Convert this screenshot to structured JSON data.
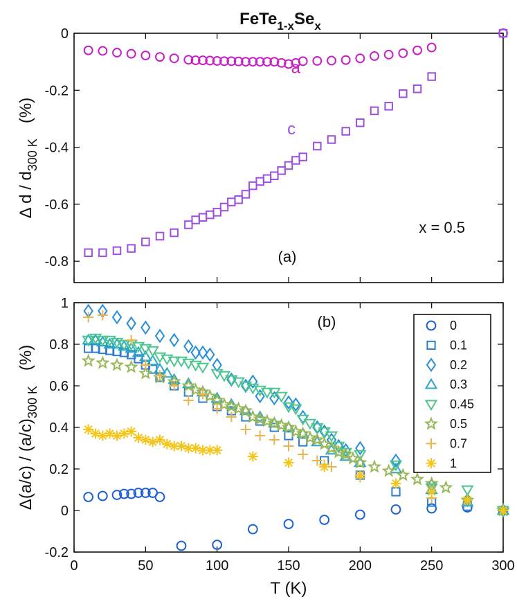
{
  "chart_data": [
    {
      "type": "scatter",
      "panel_label": "(a)",
      "title": {
        "base": "FeTe",
        "sub1": "1-x",
        "mid": "Se",
        "sub2": "x"
      },
      "ylabel": {
        "pre": "Δ d / d",
        "sub": "300 K",
        "unit": "(%)"
      },
      "xlim": [
        0,
        300
      ],
      "ylim": [
        -0.875,
        0
      ],
      "yticks": [
        "0",
        "-0.2",
        "-0.4",
        "-0.6",
        "-0.8"
      ],
      "annotation": "x = 0.5",
      "series": [
        {
          "name": "a",
          "marker": "circle",
          "color": "#c81ec8",
          "label_pos": {
            "x": 155,
            "y": -0.14
          },
          "x": [
            10,
            20,
            30,
            40,
            50,
            60,
            70,
            80,
            85,
            90,
            95,
            100,
            105,
            110,
            115,
            120,
            125,
            130,
            135,
            140,
            145,
            150,
            155,
            160,
            170,
            180,
            190,
            200,
            210,
            220,
            230,
            240,
            250,
            300
          ],
          "y": [
            -0.06,
            -0.062,
            -0.068,
            -0.072,
            -0.078,
            -0.083,
            -0.088,
            -0.093,
            -0.095,
            -0.095,
            -0.096,
            -0.097,
            -0.098,
            -0.098,
            -0.099,
            -0.1,
            -0.1,
            -0.1,
            -0.1,
            -0.1,
            -0.104,
            -0.108,
            -0.104,
            -0.098,
            -0.097,
            -0.096,
            -0.094,
            -0.088,
            -0.08,
            -0.075,
            -0.07,
            -0.06,
            -0.05,
            0.0
          ]
        },
        {
          "name": "c",
          "marker": "square",
          "color": "#9b50e0",
          "label_pos": {
            "x": 152,
            "y": -0.355
          },
          "x": [
            10,
            20,
            30,
            40,
            50,
            60,
            70,
            80,
            85,
            90,
            95,
            100,
            105,
            110,
            115,
            120,
            125,
            130,
            135,
            140,
            145,
            150,
            155,
            160,
            170,
            180,
            190,
            200,
            210,
            220,
            230,
            240,
            250,
            300
          ],
          "y": [
            -0.77,
            -0.77,
            -0.763,
            -0.755,
            -0.732,
            -0.712,
            -0.7,
            -0.672,
            -0.655,
            -0.646,
            -0.637,
            -0.628,
            -0.61,
            -0.592,
            -0.584,
            -0.565,
            -0.535,
            -0.52,
            -0.51,
            -0.5,
            -0.482,
            -0.464,
            -0.446,
            -0.434,
            -0.396,
            -0.373,
            -0.344,
            -0.314,
            -0.272,
            -0.256,
            -0.212,
            -0.195,
            -0.152,
            0.0
          ]
        }
      ]
    },
    {
      "type": "scatter",
      "panel_label": "(b)",
      "xlabel": "T  (K)",
      "ylabel": {
        "pre": "Δ(a/c) / (a/c)",
        "sub": "300 K",
        "unit": "(%)"
      },
      "xlim": [
        0,
        300
      ],
      "ylim": [
        -0.2,
        1
      ],
      "xticks": [
        "0",
        "50",
        "100",
        "150",
        "200",
        "250",
        "300"
      ],
      "yticks": [
        "1",
        "0.8",
        "0.6",
        "0.4",
        "0.2",
        "0",
        "-0.2"
      ],
      "legend_position": "top-right",
      "series": [
        {
          "name": "0",
          "marker": "circle",
          "color": "#1f5fd6",
          "x": [
            10,
            20,
            30,
            35,
            40,
            45,
            50,
            55,
            60,
            75,
            100,
            125,
            150,
            175,
            200,
            225,
            250,
            275,
            300
          ],
          "y": [
            0.065,
            0.07,
            0.075,
            0.08,
            0.08,
            0.085,
            0.085,
            0.085,
            0.065,
            -0.17,
            -0.165,
            -0.09,
            -0.065,
            -0.045,
            -0.02,
            0.005,
            0.01,
            0.015,
            0.0
          ]
        },
        {
          "name": "0.1",
          "marker": "square",
          "color": "#2f7fd0",
          "x": [
            10,
            15,
            20,
            25,
            30,
            35,
            40,
            45,
            50,
            55,
            60,
            70,
            80,
            90,
            100,
            110,
            120,
            130,
            140,
            150,
            160,
            175,
            200,
            225,
            250,
            275,
            300
          ],
          "y": [
            0.78,
            0.78,
            0.775,
            0.77,
            0.765,
            0.76,
            0.75,
            0.73,
            0.7,
            0.68,
            0.64,
            0.6,
            0.57,
            0.54,
            0.5,
            0.48,
            0.45,
            0.43,
            0.4,
            0.36,
            0.33,
            0.24,
            0.17,
            0.09,
            0.04,
            0.02,
            0.0
          ]
        },
        {
          "name": "0.2",
          "marker": "diamond",
          "color": "#2a8fd8",
          "x": [
            10,
            20,
            30,
            40,
            50,
            60,
            70,
            80,
            85,
            90,
            95,
            100,
            110,
            120,
            125,
            130,
            140,
            150,
            155,
            160,
            170,
            175,
            180,
            185,
            190,
            200,
            225,
            250,
            275,
            300
          ],
          "y": [
            0.96,
            0.96,
            0.93,
            0.9,
            0.88,
            0.84,
            0.82,
            0.79,
            0.76,
            0.76,
            0.75,
            0.7,
            0.63,
            0.6,
            0.62,
            0.55,
            0.54,
            0.52,
            0.51,
            0.45,
            0.4,
            0.38,
            0.34,
            0.31,
            0.29,
            0.3,
            0.24,
            0.12,
            0.05,
            0.0
          ]
        },
        {
          "name": "0.3",
          "marker": "triangle",
          "color": "#2ba6c4",
          "x": [
            10,
            15,
            20,
            25,
            30,
            35,
            40,
            45,
            50,
            55,
            60,
            65,
            70,
            80,
            90,
            100,
            110,
            120,
            130,
            140,
            150,
            160,
            170,
            180,
            190,
            200,
            225,
            250,
            275,
            300
          ],
          "y": [
            0.82,
            0.82,
            0.81,
            0.8,
            0.8,
            0.79,
            0.78,
            0.76,
            0.74,
            0.72,
            0.68,
            0.66,
            0.63,
            0.61,
            0.57,
            0.54,
            0.51,
            0.48,
            0.45,
            0.42,
            0.4,
            0.37,
            0.33,
            0.29,
            0.26,
            0.23,
            0.2,
            0.1,
            0.04,
            0.0
          ]
        },
        {
          "name": "0.45",
          "marker": "triangledown",
          "color": "#4cc58f",
          "x": [
            10,
            15,
            20,
            25,
            30,
            35,
            40,
            45,
            50,
            55,
            60,
            65,
            70,
            75,
            80,
            85,
            90,
            100,
            105,
            110,
            115,
            120,
            125,
            130,
            135,
            140,
            145,
            150,
            155,
            160,
            165,
            170,
            175,
            180,
            185,
            190,
            200,
            225,
            250,
            275,
            300
          ],
          "y": [
            0.82,
            0.83,
            0.82,
            0.82,
            0.81,
            0.8,
            0.8,
            0.79,
            0.78,
            0.77,
            0.74,
            0.73,
            0.72,
            0.72,
            0.71,
            0.7,
            0.69,
            0.66,
            0.65,
            0.63,
            0.62,
            0.6,
            0.59,
            0.58,
            0.57,
            0.57,
            0.55,
            0.5,
            0.49,
            0.44,
            0.42,
            0.4,
            0.38,
            0.36,
            0.31,
            0.28,
            0.27,
            0.22,
            0.11,
            0.1,
            0.0
          ]
        },
        {
          "name": "0.5",
          "marker": "star",
          "color": "#99b85a",
          "x": [
            10,
            20,
            30,
            40,
            50,
            60,
            70,
            80,
            85,
            90,
            95,
            100,
            105,
            110,
            115,
            120,
            125,
            130,
            135,
            140,
            145,
            150,
            155,
            160,
            165,
            170,
            175,
            180,
            185,
            190,
            195,
            200,
            210,
            220,
            230,
            240,
            250,
            260,
            275,
            300
          ],
          "y": [
            0.72,
            0.71,
            0.7,
            0.69,
            0.66,
            0.64,
            0.62,
            0.6,
            0.58,
            0.57,
            0.55,
            0.53,
            0.51,
            0.5,
            0.49,
            0.48,
            0.45,
            0.44,
            0.43,
            0.42,
            0.41,
            0.4,
            0.38,
            0.37,
            0.35,
            0.34,
            0.32,
            0.3,
            0.28,
            0.27,
            0.25,
            0.23,
            0.21,
            0.19,
            0.17,
            0.15,
            0.13,
            0.11,
            0.05,
            0.0
          ]
        },
        {
          "name": "0.7",
          "marker": "plus",
          "color": "#e8b54e",
          "x": [
            10,
            20,
            40,
            50,
            60,
            70,
            80,
            90,
            100,
            110,
            120,
            130,
            140,
            150,
            160,
            170,
            175,
            180,
            200,
            225,
            250,
            275,
            300
          ],
          "y": [
            0.93,
            0.94,
            0.82,
            0.7,
            0.65,
            0.6,
            0.53,
            0.56,
            0.49,
            0.45,
            0.39,
            0.36,
            0.34,
            0.31,
            0.27,
            0.24,
            0.22,
            0.21,
            0.16,
            0.13,
            0.06,
            0.05,
            0.0
          ]
        },
        {
          "name": "1",
          "marker": "asterisk",
          "color": "#f5c518",
          "x": [
            10,
            15,
            20,
            25,
            30,
            35,
            40,
            45,
            50,
            55,
            60,
            65,
            70,
            75,
            80,
            85,
            90,
            95,
            100,
            125,
            150,
            175,
            200,
            225,
            250,
            275,
            300
          ],
          "y": [
            0.39,
            0.37,
            0.36,
            0.37,
            0.36,
            0.37,
            0.38,
            0.35,
            0.34,
            0.33,
            0.34,
            0.32,
            0.31,
            0.31,
            0.3,
            0.3,
            0.29,
            0.29,
            0.29,
            0.26,
            0.23,
            0.21,
            0.17,
            0.13,
            0.09,
            0.05,
            0.0
          ]
        }
      ]
    }
  ]
}
